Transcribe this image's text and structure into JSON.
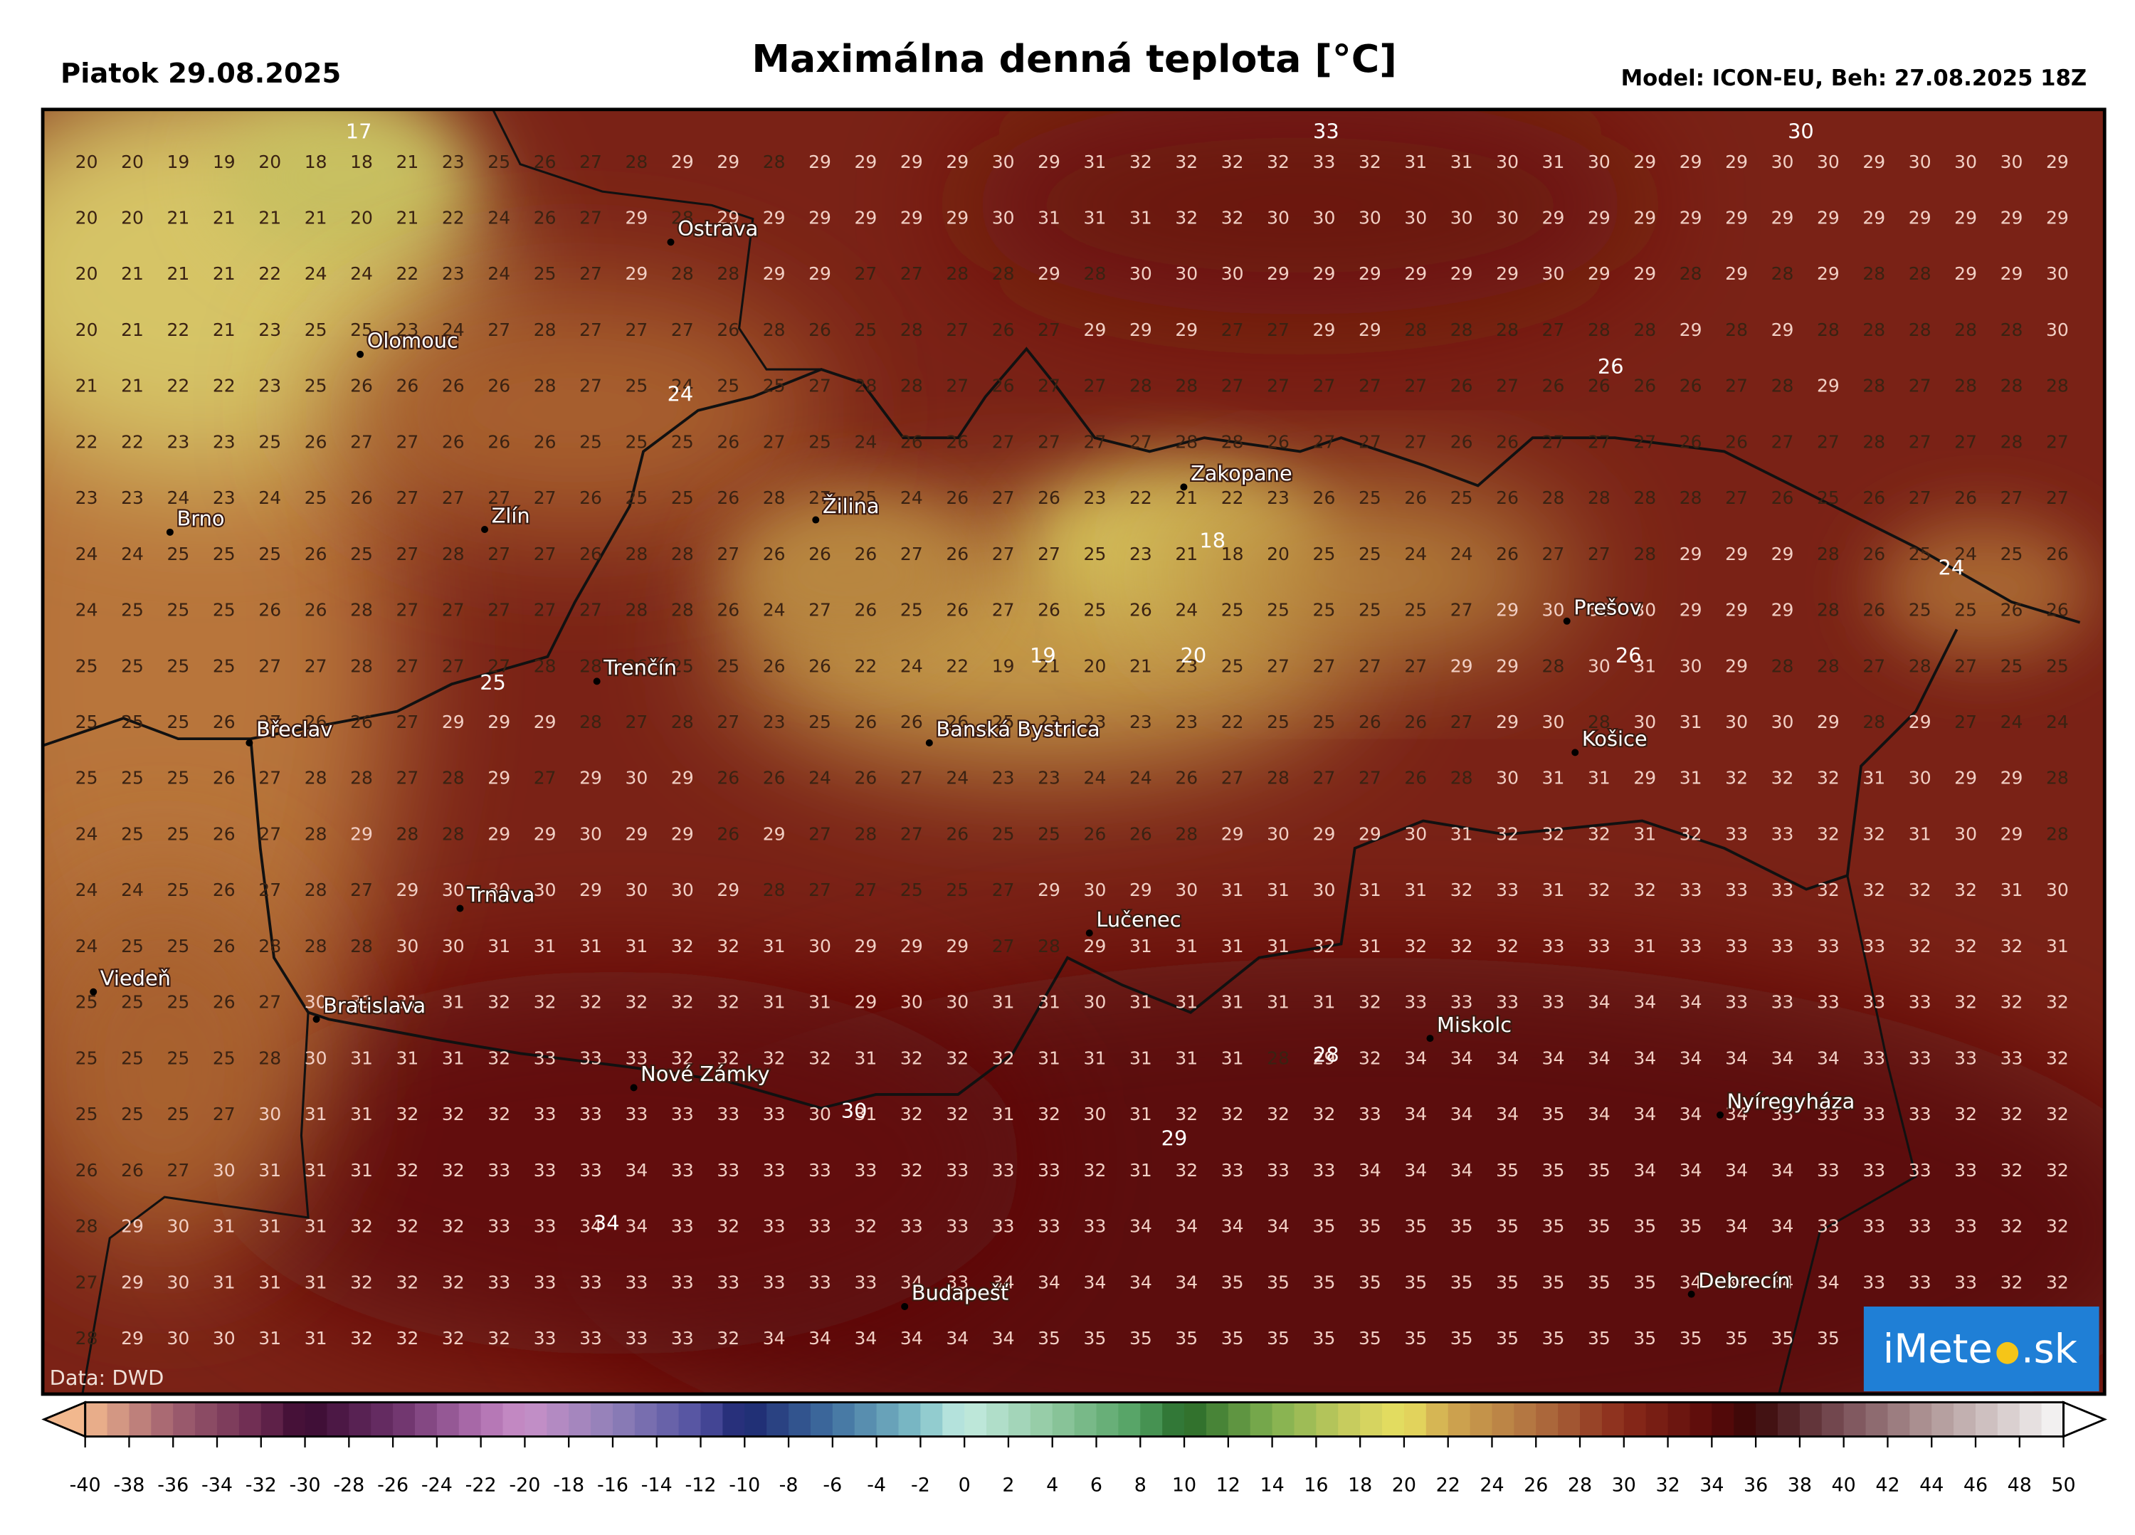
{
  "header": {
    "date": "Piatok 29.08.2025",
    "title": "Maximálna denná teplota [°C]",
    "model": "Model: ICON-EU, Beh: 27.08.2025 18Z"
  },
  "source": "Data: DWD",
  "logo": [
    "iMete",
    ".sk"
  ],
  "cities": [
    "Ostrava",
    "Olomouc",
    "Brno",
    "Zlín",
    "Žilina",
    "Zakopane",
    "Prešov",
    "Trenčín",
    "Břeclav",
    "Banská Bystrica",
    "Košice",
    "Trnava",
    "Lučenec",
    "Viedeň",
    "Bratislava",
    "Miskolc",
    "Nové Zámky",
    "Nyíregyháza",
    "Budapešť",
    "Debrecín"
  ],
  "contour_labels": [
    17,
    33,
    30,
    24,
    26,
    24,
    18,
    19,
    20,
    26,
    25,
    30,
    28,
    29,
    34
  ],
  "grid": {
    "rows": [
      [
        20,
        20,
        19,
        19,
        20,
        18,
        18,
        21,
        23,
        25,
        26,
        27,
        28,
        29,
        29,
        28,
        29,
        29,
        29,
        29,
        30,
        29,
        31,
        32,
        32,
        32,
        32,
        33,
        32,
        31,
        31,
        30,
        31,
        30,
        29,
        29,
        29,
        30,
        30,
        29,
        30,
        30,
        30,
        29
      ],
      [
        20,
        20,
        21,
        21,
        21,
        21,
        20,
        21,
        22,
        24,
        26,
        27,
        29,
        28,
        29,
        29,
        29,
        29,
        29,
        29,
        30,
        31,
        31,
        31,
        32,
        32,
        30,
        30,
        30,
        30,
        30,
        30,
        29,
        29,
        29,
        29,
        29,
        29,
        29,
        29,
        29,
        29,
        29,
        29
      ],
      [
        20,
        21,
        21,
        21,
        22,
        24,
        24,
        22,
        23,
        24,
        25,
        27,
        29,
        28,
        28,
        29,
        29,
        27,
        27,
        28,
        28,
        29,
        28,
        30,
        30,
        30,
        29,
        29,
        29,
        29,
        29,
        29,
        30,
        29,
        29,
        28,
        29,
        28,
        29,
        28,
        28,
        29,
        29,
        30
      ],
      [
        20,
        21,
        22,
        21,
        23,
        25,
        25,
        23,
        24,
        27,
        28,
        27,
        27,
        27,
        26,
        28,
        26,
        25,
        28,
        27,
        26,
        27,
        29,
        29,
        29,
        27,
        27,
        29,
        29,
        28,
        28,
        28,
        27,
        28,
        28,
        29,
        28,
        29,
        28,
        28,
        28,
        28,
        28,
        30
      ],
      [
        21,
        21,
        22,
        22,
        23,
        25,
        26,
        26,
        26,
        26,
        28,
        27,
        25,
        24,
        25,
        25,
        27,
        28,
        28,
        27,
        26,
        27,
        27,
        28,
        28,
        27,
        27,
        27,
        27,
        27,
        26,
        27,
        26,
        26,
        26,
        26,
        27,
        28,
        29,
        28,
        27,
        28,
        28,
        28
      ],
      [
        22,
        22,
        23,
        23,
        25,
        26,
        27,
        27,
        26,
        26,
        26,
        25,
        25,
        25,
        26,
        27,
        25,
        24,
        26,
        26,
        27,
        27,
        27,
        27,
        28,
        28,
        26,
        27,
        27,
        27,
        26,
        26,
        27,
        27,
        27,
        26,
        26,
        27,
        27,
        28,
        27,
        27,
        28,
        27
      ],
      [
        23,
        23,
        24,
        23,
        24,
        25,
        26,
        27,
        27,
        27,
        27,
        26,
        25,
        25,
        26,
        28,
        27,
        25,
        24,
        26,
        27,
        26,
        23,
        22,
        21,
        22,
        23,
        26,
        25,
        26,
        25,
        26,
        28,
        28,
        28,
        28,
        27,
        26,
        25,
        26,
        27,
        26,
        27,
        27
      ],
      [
        24,
        24,
        25,
        25,
        25,
        26,
        25,
        27,
        28,
        27,
        27,
        26,
        28,
        28,
        27,
        26,
        26,
        26,
        27,
        26,
        27,
        27,
        25,
        23,
        21,
        18,
        20,
        25,
        25,
        24,
        24,
        26,
        27,
        27,
        28,
        29,
        29,
        29,
        28,
        26,
        25,
        24,
        25,
        26
      ],
      [
        24,
        25,
        25,
        25,
        26,
        26,
        28,
        27,
        27,
        27,
        27,
        27,
        28,
        28,
        26,
        24,
        27,
        26,
        25,
        26,
        27,
        26,
        25,
        26,
        24,
        25,
        25,
        25,
        25,
        25,
        27,
        29,
        30,
        30,
        30,
        29,
        29,
        29,
        28,
        26,
        25,
        25,
        26,
        26
      ],
      [
        25,
        25,
        25,
        25,
        27,
        27,
        28,
        27,
        27,
        27,
        28,
        28,
        26,
        25,
        25,
        26,
        26,
        22,
        24,
        22,
        19,
        21,
        20,
        21,
        23,
        25,
        27,
        27,
        27,
        27,
        29,
        29,
        28,
        30,
        31,
        30,
        29,
        28,
        28,
        27,
        28,
        27,
        25,
        25
      ],
      [
        25,
        25,
        25,
        26,
        27,
        26,
        26,
        27,
        29,
        29,
        29,
        28,
        27,
        28,
        27,
        23,
        25,
        26,
        26,
        26,
        25,
        23,
        23,
        23,
        23,
        22,
        25,
        25,
        26,
        26,
        27,
        29,
        30,
        28,
        30,
        31,
        30,
        30,
        29,
        28,
        29,
        27,
        24,
        24
      ],
      [
        25,
        25,
        25,
        26,
        27,
        28,
        28,
        27,
        28,
        29,
        27,
        29,
        30,
        29,
        26,
        26,
        24,
        26,
        27,
        24,
        23,
        23,
        24,
        24,
        26,
        27,
        28,
        27,
        27,
        26,
        28,
        30,
        31,
        31,
        29,
        31,
        32,
        32,
        32,
        31,
        30,
        29,
        29,
        28
      ],
      [
        24,
        25,
        25,
        26,
        27,
        28,
        29,
        28,
        28,
        29,
        29,
        30,
        29,
        29,
        26,
        29,
        27,
        28,
        27,
        26,
        25,
        25,
        26,
        26,
        28,
        29,
        30,
        29,
        29,
        30,
        31,
        32,
        32,
        32,
        31,
        32,
        33,
        33,
        32,
        32,
        31,
        30,
        29,
        28
      ],
      [
        24,
        24,
        25,
        26,
        27,
        28,
        27,
        29,
        30,
        30,
        30,
        29,
        30,
        30,
        29,
        28,
        27,
        27,
        25,
        25,
        27,
        29,
        30,
        29,
        30,
        31,
        31,
        30,
        31,
        31,
        32,
        33,
        31,
        32,
        32,
        33,
        33,
        33,
        32,
        32,
        32,
        32,
        31,
        30
      ],
      [
        24,
        25,
        25,
        26,
        28,
        28,
        28,
        30,
        30,
        31,
        31,
        31,
        31,
        32,
        32,
        31,
        30,
        29,
        29,
        29,
        27,
        28,
        29,
        31,
        31,
        31,
        31,
        32,
        31,
        32,
        32,
        32,
        33,
        33,
        31,
        33,
        33,
        33,
        33,
        33,
        32,
        32,
        32,
        31
      ],
      [
        25,
        25,
        25,
        26,
        27,
        30,
        31,
        31,
        31,
        32,
        32,
        32,
        32,
        32,
        32,
        31,
        31,
        29,
        30,
        30,
        31,
        31,
        30,
        31,
        31,
        31,
        31,
        31,
        32,
        33,
        33,
        33,
        33,
        34,
        34,
        34,
        33,
        33,
        33,
        33,
        33,
        32,
        32,
        32
      ],
      [
        25,
        25,
        25,
        25,
        28,
        30,
        31,
        31,
        31,
        32,
        33,
        33,
        33,
        32,
        32,
        32,
        32,
        31,
        32,
        32,
        32,
        31,
        31,
        31,
        31,
        31,
        28,
        29,
        32,
        34,
        34,
        34,
        34,
        34,
        34,
        34,
        34,
        34,
        34,
        33,
        33,
        33,
        33,
        32
      ],
      [
        25,
        25,
        25,
        27,
        30,
        31,
        31,
        32,
        32,
        32,
        33,
        33,
        33,
        33,
        33,
        33,
        30,
        31,
        32,
        32,
        31,
        32,
        30,
        31,
        32,
        32,
        32,
        32,
        33,
        34,
        34,
        34,
        35,
        34,
        34,
        34,
        34,
        33,
        33,
        33,
        33,
        32,
        32,
        32
      ],
      [
        26,
        26,
        27,
        30,
        31,
        31,
        31,
        32,
        32,
        33,
        33,
        33,
        34,
        33,
        33,
        33,
        33,
        33,
        32,
        33,
        33,
        33,
        32,
        31,
        32,
        33,
        33,
        33,
        34,
        34,
        34,
        35,
        35,
        35,
        34,
        34,
        34,
        34,
        33,
        33,
        33,
        33,
        32,
        32
      ],
      [
        28,
        29,
        30,
        31,
        31,
        31,
        32,
        32,
        32,
        33,
        33,
        34,
        34,
        33,
        32,
        33,
        33,
        32,
        33,
        33,
        33,
        33,
        33,
        34,
        34,
        34,
        34,
        35,
        35,
        35,
        35,
        35,
        35,
        35,
        35,
        35,
        34,
        34,
        33,
        33,
        33,
        33,
        32,
        32
      ],
      [
        27,
        29,
        30,
        31,
        31,
        31,
        32,
        32,
        32,
        33,
        33,
        33,
        33,
        33,
        33,
        33,
        33,
        33,
        34,
        33,
        34,
        34,
        34,
        34,
        34,
        35,
        35,
        35,
        35,
        35,
        35,
        35,
        35,
        35,
        35,
        34,
        34,
        34,
        34,
        33,
        33,
        33,
        32,
        32
      ],
      [
        28,
        29,
        30,
        30,
        31,
        31,
        32,
        32,
        32,
        32,
        33,
        33,
        33,
        33,
        32,
        34,
        34,
        34,
        34,
        34,
        34,
        35,
        35,
        35,
        35,
        35,
        35,
        35,
        35,
        35,
        35,
        35,
        35,
        35,
        35,
        35,
        35,
        35,
        35,
        null,
        null,
        null,
        null,
        null
      ]
    ]
  },
  "colorbar": {
    "ticks": [
      -40,
      -38,
      -36,
      -34,
      -32,
      -30,
      -28,
      -26,
      -24,
      -22,
      -20,
      -18,
      -16,
      -14,
      -12,
      -10,
      -8,
      -6,
      -4,
      -2,
      0,
      2,
      4,
      6,
      8,
      10,
      12,
      14,
      16,
      18,
      20,
      22,
      24,
      26,
      28,
      30,
      32,
      34,
      36,
      38,
      40,
      42,
      44,
      46,
      48,
      50
    ]
  }
}
